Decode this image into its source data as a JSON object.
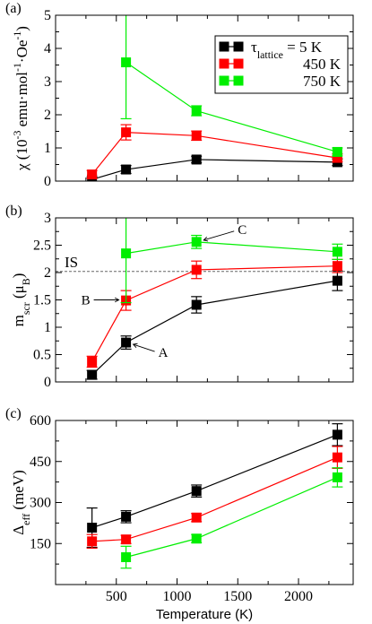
{
  "colors": {
    "black": "#000000",
    "red": "#ff0000",
    "green": "#00ee00",
    "reference": "#666666"
  },
  "chart_data": [
    {
      "panel_label": "(a)",
      "type": "line",
      "ylabel_parts": [
        "χ (10",
        "-3",
        " emu·mol",
        "-1",
        "·Oe",
        "-1",
        ")"
      ],
      "ylim": [
        0,
        5
      ],
      "yticks": [
        0,
        1,
        2,
        3,
        4,
        5
      ],
      "xlim": [
        0,
        2450
      ],
      "xticks": [
        500,
        1000,
        1500,
        2000
      ],
      "show_xtick_labels": false,
      "legend": {
        "position": "top-right",
        "entries": [
          {
            "parts": [
              "τ",
              "lattice",
              " = 5 K"
            ]
          },
          {
            "parts": [
              "450 K"
            ]
          },
          {
            "parts": [
              "750 K"
            ]
          }
        ]
      },
      "series": [
        {
          "color": "black",
          "x": [
            300,
            580,
            1160,
            2320
          ],
          "y": [
            0.05,
            0.35,
            0.65,
            0.57
          ],
          "err": [
            0.08,
            0.12,
            0.1,
            0.1
          ]
        },
        {
          "color": "red",
          "x": [
            300,
            580,
            1160,
            2320
          ],
          "y": [
            0.2,
            1.47,
            1.37,
            0.7
          ],
          "err": [
            0.12,
            0.23,
            0.14,
            0.12
          ]
        },
        {
          "color": "green",
          "x": [
            580,
            1160,
            2320
          ],
          "y": [
            3.58,
            2.12,
            0.88
          ],
          "err": [
            1.7,
            0.15,
            0.12
          ]
        }
      ]
    },
    {
      "panel_label": "(b)",
      "type": "line",
      "ylabel_parts": [
        "m",
        "scr",
        " (μ",
        "B",
        ")"
      ],
      "ylim": [
        0,
        3
      ],
      "yticks": [
        0,
        0.5,
        1,
        1.5,
        2,
        2.5,
        3
      ],
      "ytick_labels": [
        "0",
        "0.5",
        "1",
        "1.5",
        "2",
        "2.5",
        "3"
      ],
      "xlim": [
        0,
        2450
      ],
      "xticks": [
        500,
        1000,
        1500,
        2000
      ],
      "show_xtick_labels": false,
      "reference_line": {
        "label": "IS",
        "y": 2.02
      },
      "annotations": [
        {
          "label": "A",
          "x": 580,
          "y": 0.72
        },
        {
          "label": "B",
          "x": 580,
          "y": 1.5
        },
        {
          "label": "C",
          "x": 1160,
          "y": 2.56
        }
      ],
      "series": [
        {
          "color": "black",
          "x": [
            300,
            580,
            1160,
            2320
          ],
          "y": [
            0.13,
            0.72,
            1.41,
            1.85
          ],
          "err": [
            0.08,
            0.12,
            0.15,
            0.18
          ]
        },
        {
          "color": "red",
          "x": [
            300,
            580,
            1160,
            2320
          ],
          "y": [
            0.37,
            1.49,
            2.05,
            2.12
          ],
          "err": [
            0.1,
            0.18,
            0.16,
            0.12
          ]
        },
        {
          "color": "green",
          "x": [
            580,
            1160,
            2320
          ],
          "y": [
            2.35,
            2.56,
            2.38
          ],
          "err": [
            0.9,
            0.12,
            0.14
          ]
        }
      ]
    },
    {
      "panel_label": "(c)",
      "type": "line",
      "ylabel_parts": [
        "Δ",
        "eff",
        " (meV)"
      ],
      "ylim": [
        0,
        600
      ],
      "yticks": [
        150,
        300,
        450,
        600
      ],
      "xlim": [
        0,
        2450
      ],
      "xticks": [
        500,
        1000,
        1500,
        2000
      ],
      "show_xtick_labels": true,
      "xlabel": "Temperature (K)",
      "series": [
        {
          "color": "black",
          "x": [
            300,
            580,
            1160,
            2320
          ],
          "y": [
            208,
            248,
            342,
            548
          ],
          "err": [
            72,
            22,
            22,
            40
          ]
        },
        {
          "color": "red",
          "x": [
            300,
            580,
            1160,
            2320
          ],
          "y": [
            158,
            165,
            245,
            465
          ],
          "err": [
            25,
            15,
            15,
            40
          ]
        },
        {
          "color": "green",
          "x": [
            580,
            1160,
            2320
          ],
          "y": [
            100,
            168,
            392
          ],
          "err": [
            40,
            15,
            35
          ]
        }
      ]
    }
  ]
}
